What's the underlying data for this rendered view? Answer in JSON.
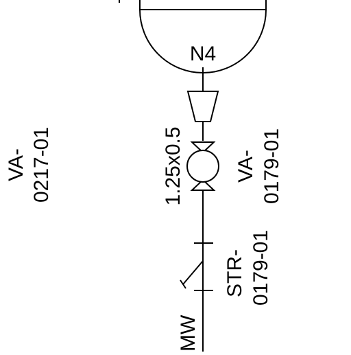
{
  "diagram": {
    "vessel_nozzle": "N4",
    "reducer_label": "1.25x0.5",
    "valve_left_tag_line1": "VA-",
    "valve_left_tag_line2": "0217-01",
    "valve_right_tag_line1": "VA-",
    "valve_right_tag_line2": "0179-01",
    "strainer_tag_line1": "STR-",
    "strainer_tag_line2": "0179-01",
    "line_service": "MW"
  },
  "colors": {
    "line": "#000000",
    "background": "#ffffff"
  }
}
